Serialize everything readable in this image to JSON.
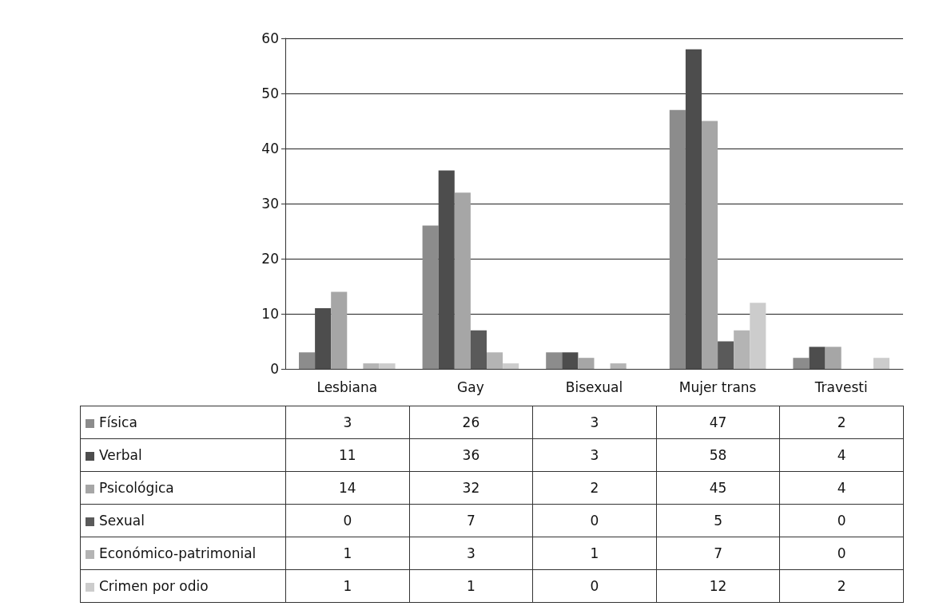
{
  "chart_data": {
    "type": "bar",
    "categories": [
      "Lesbiana",
      "Gay",
      "Bisexual",
      "Mujer trans",
      "Travesti"
    ],
    "series": [
      {
        "name": "Física",
        "color": "#8c8c8c",
        "values": [
          3,
          26,
          3,
          47,
          2
        ]
      },
      {
        "name": "Verbal",
        "color": "#4d4d4d",
        "values": [
          11,
          36,
          3,
          58,
          4
        ]
      },
      {
        "name": "Psicológica",
        "color": "#a6a6a6",
        "values": [
          14,
          32,
          2,
          45,
          4
        ]
      },
      {
        "name": "Sexual",
        "color": "#5a5a5a",
        "values": [
          0,
          7,
          0,
          5,
          0
        ]
      },
      {
        "name": "Económico-patrimonial",
        "color": "#b4b4b4",
        "values": [
          1,
          3,
          1,
          7,
          0
        ]
      },
      {
        "name": "Crimen por odio",
        "color": "#cccccc",
        "values": [
          1,
          1,
          0,
          12,
          2
        ]
      }
    ],
    "ylim": [
      0,
      60
    ],
    "yticks": [
      0,
      10,
      20,
      30,
      40,
      50,
      60
    ],
    "grid": "y",
    "legend": "bottom",
    "data_labels": true
  }
}
